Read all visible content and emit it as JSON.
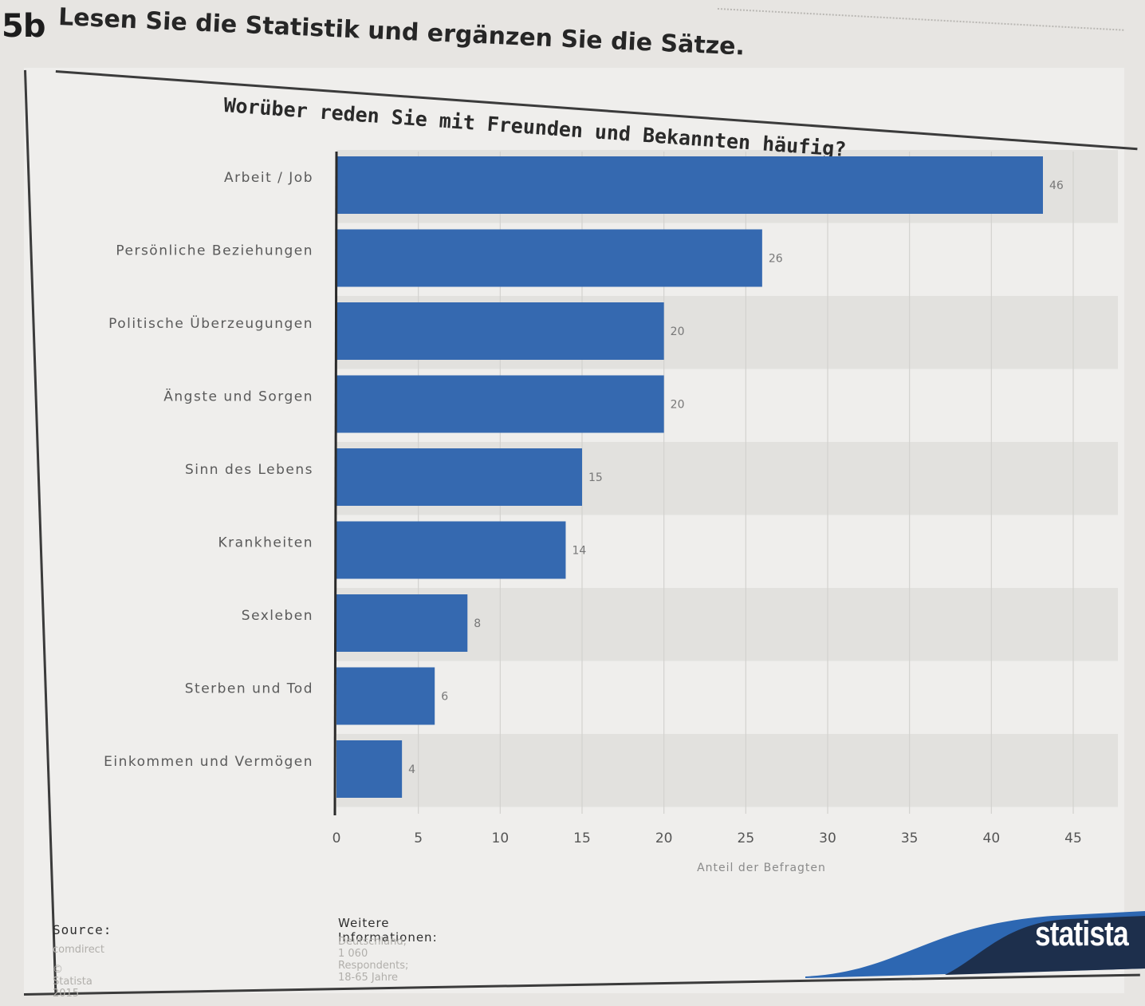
{
  "header": {
    "exercise_number": "5b",
    "instruction": "Lesen Sie die Statistik und ergänzen Sie die Sätze."
  },
  "chart_data": {
    "type": "bar",
    "orientation": "horizontal",
    "title": "Worüber reden Sie mit Freunden und Bekannten häufig?",
    "categories": [
      "Arbeit / Job",
      "Persönliche Beziehungen",
      "Politische Überzeugungen",
      "Ängste und Sorgen",
      "Sinn des Lebens",
      "Krankheiten",
      "Sexleben",
      "Sterben und Tod",
      "Einkommen und Vermögen"
    ],
    "values": [
      46,
      26,
      20,
      20,
      15,
      14,
      8,
      6,
      4
    ],
    "value_labels": [
      "46",
      "26",
      "20",
      "20",
      "15",
      "14",
      "8",
      "6",
      "4"
    ],
    "xlabel": "Anteil der Befragten",
    "ylabel": "",
    "xlim": [
      0,
      45
    ],
    "x_ticks": [
      "0",
      "5",
      "10",
      "15",
      "20",
      "25",
      "30",
      "35",
      "40",
      "45"
    ],
    "grid": true,
    "bar_color": "#3569b0"
  },
  "footer": {
    "source_heading": "Source:",
    "source_value": "comdirect",
    "copyright": "© Statista 2015",
    "more_info_heading": "Weitere Informationen:",
    "more_info_value": "Deutschland; 1 060 Respondents; 18-65 Jahre",
    "brand": "statista"
  }
}
